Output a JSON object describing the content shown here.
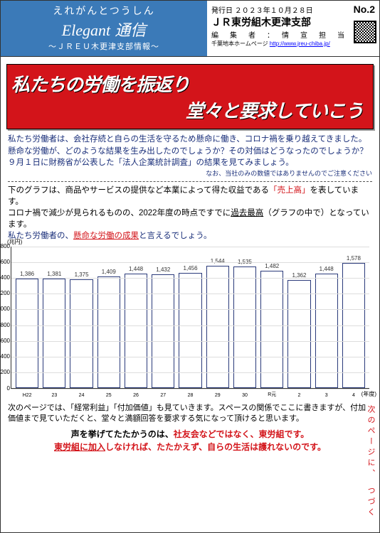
{
  "header": {
    "kana": "えれがんとつうしん",
    "main_en": "Elegant",
    "main_jp": "通信",
    "sub": "～ＪＲＥＵ木更津支部情報～",
    "issue_date_label": "発行日",
    "issue_date": "２０２３年１０月２８日",
    "issue_no_label": "No.",
    "issue_no": "2",
    "org": "ＪＲ東労組木更津支部",
    "editor_label": "編　集　者　：　情　宣　担　当",
    "homepage_label": "千葉地本ホームページ",
    "homepage_url": "http://www.jreu-chiba.jp/"
  },
  "banner": {
    "line1": "私たちの労働を振返り",
    "line2": "堂々と要求していこう"
  },
  "intro": {
    "p1": "私たち労働者は、会社存続と自らの生活を守るため懸命に働き、コロナ禍を乗り越えてきました。",
    "p2": "懸命な労働が、どのような結果を生み出したのでしょうか？その対価はどうなったのでしょうか？",
    "p3": "９月１日に財務省が公表した「法人企業統計調査」の結果を見てみましょう。",
    "note": "なお、当社のみの数値ではありませんのでご注意ください"
  },
  "graph_intro": {
    "t1a": "下のグラフは、商品やサービスの提供など本業によって得た収益である",
    "t1b": "「売上高」",
    "t1c": "を表しています。",
    "t2a": "コロナ禍で減少が見られるものの、2022年度の時点ですでに",
    "t2b": "過去最高",
    "t2c": "（グラフの中で）となっています。",
    "t3a": "私たち労働者の、",
    "t3b": "懸命な労働の成果",
    "t3c": "と言えるでしょう。"
  },
  "chart": {
    "type": "bar",
    "ylabel": "(兆円)",
    "xlabel": "(年度)",
    "ylim": [
      0,
      1800
    ],
    "yticks": [
      0,
      200,
      400,
      600,
      800,
      1000,
      1200,
      1400,
      1600,
      1800
    ],
    "categories": [
      "H22",
      "23",
      "24",
      "25",
      "26",
      "27",
      "28",
      "29",
      "30",
      "R元",
      "2",
      "3",
      "4"
    ],
    "values": [
      1386,
      1381,
      1375,
      1409,
      1448,
      1432,
      1456,
      1544,
      1535,
      1482,
      1362,
      1448,
      1578
    ],
    "bar_border": "#2a3a7a",
    "bar_fill": "#ffffff",
    "grid_color": "#dddddd",
    "axis_color": "#333333",
    "value_fontsize": 8,
    "cat_fontsize": 7
  },
  "footer": {
    "p1": "次のページでは、「経常利益」「付加価値」も見ていきます。スペースの関係でここに書きますが、付加価値まで見ていただくと、堂々と満額回答を要求する気になって頂けると思います。",
    "call1a": "声を挙げてたたかうのは、",
    "call1b": "社友会などではなく、東労組です。",
    "call2a": "東労組に加入",
    "call2b": "しなければ、たたかえず、自らの生活は護れないのです。"
  },
  "side": "次のページに、　つづく"
}
